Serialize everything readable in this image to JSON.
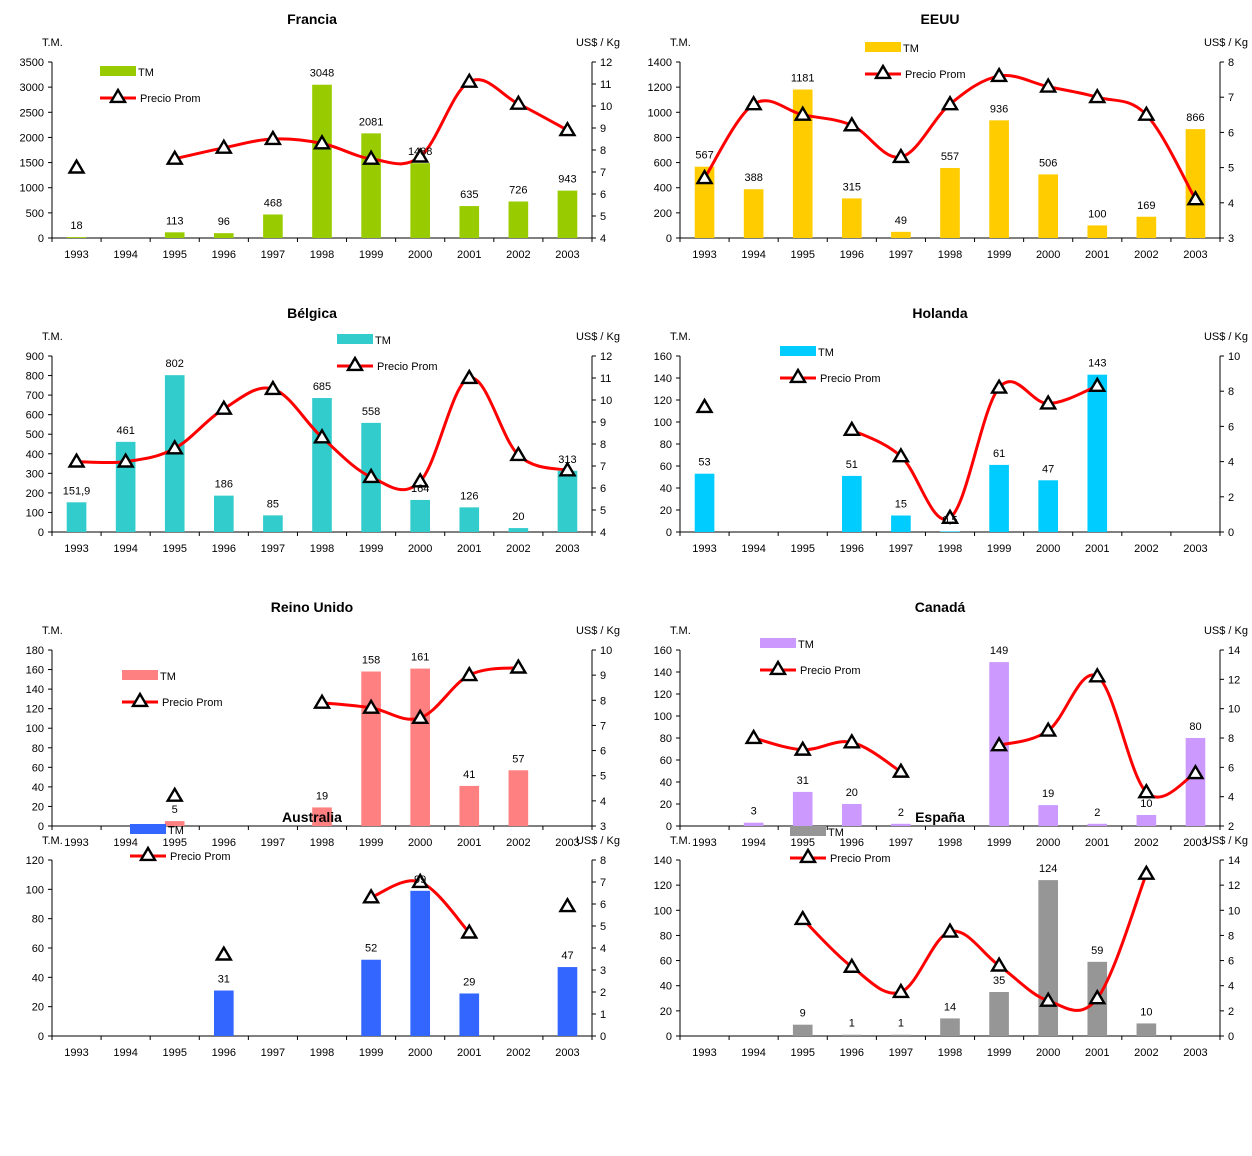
{
  "chart_data": [
    {
      "type": "bar",
      "title": "Francia",
      "ylabel_left": "T.M.",
      "ylabel_right": "US$ / Kg",
      "x": [
        "1993",
        "1994",
        "1995",
        "1996",
        "1997",
        "1998",
        "1999",
        "2000",
        "2001",
        "2002",
        "2003"
      ],
      "ylim": [
        0,
        3500
      ],
      "ylim_right": [
        4,
        12
      ],
      "yticks_left": [
        "0",
        "500",
        "1000",
        "1500",
        "2000",
        "2500",
        "3000",
        "3500"
      ],
      "yticks_right": [
        "4",
        "5",
        "6",
        "7",
        "8",
        "9",
        "10",
        "11",
        "12"
      ],
      "grid": false,
      "legend_position": "top-left",
      "bar_color": "#99cc00",
      "series": [
        {
          "name": "TM",
          "kind": "bar",
          "values": [
            18,
            null,
            113,
            96,
            468,
            3048,
            2081,
            1488,
            635,
            726,
            943
          ],
          "labels": [
            "18",
            "",
            "113",
            "96",
            "468",
            "3048",
            "2081",
            "1488",
            "635",
            "726",
            "943"
          ]
        },
        {
          "name": "Precio Prom",
          "kind": "line",
          "axis": "right",
          "values": [
            7.2,
            null,
            7.6,
            8.1,
            8.5,
            8.3,
            7.6,
            7.7,
            11.1,
            10.1,
            8.9
          ]
        }
      ]
    },
    {
      "type": "bar",
      "title": "EEUU",
      "ylabel_left": "T.M.",
      "ylabel_right": "US$ / Kg",
      "x": [
        "1993",
        "1994",
        "1995",
        "1996",
        "1997",
        "1998",
        "1999",
        "2000",
        "2001",
        "2002",
        "2003"
      ],
      "ylim": [
        0,
        1400
      ],
      "ylim_right": [
        3,
        8
      ],
      "yticks_left": [
        "0",
        "200",
        "400",
        "600",
        "800",
        "1000",
        "1200",
        "1400"
      ],
      "yticks_right": [
        "3",
        "4",
        "5",
        "6",
        "7",
        "8"
      ],
      "grid": false,
      "legend_position": "top-center",
      "bar_color": "#ffcc00",
      "series": [
        {
          "name": "TM",
          "kind": "bar",
          "values": [
            567,
            388,
            1181,
            315,
            49,
            557,
            936,
            506,
            100,
            169,
            866
          ],
          "labels": [
            "567",
            "388",
            "1181",
            "315",
            "49",
            "557",
            "936",
            "506",
            "100",
            "169",
            "866"
          ]
        },
        {
          "name": "Precio Prom",
          "kind": "line",
          "axis": "right",
          "values": [
            4.7,
            6.8,
            6.5,
            6.2,
            5.3,
            6.8,
            7.6,
            7.3,
            7.0,
            6.5,
            4.1
          ]
        }
      ]
    },
    {
      "type": "bar",
      "title": "Bélgica",
      "ylabel_left": "T.M.",
      "ylabel_right": "US$ / Kg",
      "x": [
        "1993",
        "1994",
        "1995",
        "1996",
        "1997",
        "1998",
        "1999",
        "2000",
        "2001",
        "2002",
        "2003"
      ],
      "ylim": [
        0,
        900
      ],
      "ylim_right": [
        4,
        12
      ],
      "yticks_left": [
        "0",
        "100",
        "200",
        "300",
        "400",
        "500",
        "600",
        "700",
        "800",
        "900"
      ],
      "yticks_right": [
        "4",
        "5",
        "6",
        "7",
        "8",
        "9",
        "10",
        "11",
        "12"
      ],
      "grid": false,
      "legend_position": "top-center",
      "bar_color": "#33cccc",
      "series": [
        {
          "name": "TM",
          "kind": "bar",
          "values": [
            151.9,
            461,
            802,
            186,
            85,
            685,
            558,
            164,
            126,
            20,
            313
          ],
          "labels": [
            "151,9",
            "461",
            "802",
            "186",
            "85",
            "685",
            "558",
            "164",
            "126",
            "20",
            "313"
          ]
        },
        {
          "name": "Precio Prom",
          "kind": "line",
          "axis": "right",
          "values": [
            7.2,
            7.2,
            7.8,
            9.6,
            10.5,
            8.3,
            6.5,
            6.3,
            11.0,
            7.5,
            6.8
          ]
        }
      ]
    },
    {
      "type": "bar",
      "title": "Holanda",
      "ylabel_left": "T.M.",
      "ylabel_right": "US$ / Kg",
      "x": [
        "1993",
        "1994",
        "1995",
        "1996",
        "1997",
        "1998",
        "1999",
        "2000",
        "2001",
        "2002",
        "2003"
      ],
      "ylim": [
        0,
        160
      ],
      "ylim_right": [
        0,
        10
      ],
      "yticks_left": [
        "0",
        "20",
        "40",
        "60",
        "80",
        "100",
        "120",
        "140",
        "160"
      ],
      "yticks_right": [
        "0",
        "2",
        "4",
        "6",
        "8",
        "10"
      ],
      "grid": false,
      "legend_position": "top-left",
      "bar_color": "#00ccff",
      "series": [
        {
          "name": "TM",
          "kind": "bar",
          "values": [
            53,
            null,
            null,
            51,
            15,
            0.5,
            61,
            47,
            143,
            null,
            null
          ],
          "labels": [
            "53",
            "",
            "",
            "51",
            "15",
            "0,5",
            "61",
            "47",
            "143",
            "",
            ""
          ]
        },
        {
          "name": "Precio Prom",
          "kind": "line",
          "axis": "right",
          "values": [
            7.1,
            null,
            null,
            5.8,
            4.3,
            0.8,
            8.2,
            7.3,
            8.3,
            null,
            null
          ]
        }
      ]
    },
    {
      "type": "bar",
      "title": "Reino Unido",
      "ylabel_left": "T.M.",
      "ylabel_right": "US$ / Kg",
      "x": [
        "1993",
        "1994",
        "1995",
        "1996",
        "1997",
        "1998",
        "1999",
        "2000",
        "2001",
        "2002",
        "2003"
      ],
      "ylim": [
        0,
        180
      ],
      "ylim_right": [
        3,
        10
      ],
      "yticks_left": [
        "0",
        "20",
        "40",
        "60",
        "80",
        "100",
        "120",
        "140",
        "160",
        "180"
      ],
      "yticks_right": [
        "3",
        "4",
        "5",
        "6",
        "7",
        "8",
        "9",
        "10"
      ],
      "grid": false,
      "legend_position": "top-left",
      "bar_color": "#ff8080",
      "series": [
        {
          "name": "TM",
          "kind": "bar",
          "values": [
            null,
            null,
            5,
            null,
            null,
            19,
            158,
            161,
            41,
            57,
            null
          ],
          "labels": [
            "",
            "",
            "5",
            "",
            "",
            "19",
            "158",
            "161",
            "41",
            "57",
            ""
          ]
        },
        {
          "name": "Precio Prom",
          "kind": "line",
          "axis": "right",
          "values": [
            null,
            null,
            4.2,
            null,
            null,
            7.9,
            7.7,
            7.3,
            9.0,
            9.3,
            null
          ]
        }
      ]
    },
    {
      "type": "bar",
      "title": "Canadá",
      "ylabel_left": "T.M.",
      "ylabel_right": "US$ / Kg",
      "x": [
        "1993",
        "1994",
        "1995",
        "1996",
        "1997",
        "1998",
        "1999",
        "2000",
        "2001",
        "2002",
        "2003"
      ],
      "ylim": [
        0,
        160
      ],
      "ylim_right": [
        2,
        14
      ],
      "yticks_left": [
        "0",
        "20",
        "40",
        "60",
        "80",
        "100",
        "120",
        "140",
        "160"
      ],
      "yticks_right": [
        "2",
        "4",
        "6",
        "8",
        "10",
        "12",
        "14"
      ],
      "grid": false,
      "legend_position": "top-left",
      "bar_color": "#cc99ff",
      "series": [
        {
          "name": "TM",
          "kind": "bar",
          "values": [
            null,
            3,
            31,
            20,
            2,
            null,
            149,
            19,
            2,
            10,
            80
          ],
          "labels": [
            "",
            "3",
            "31",
            "20",
            "2",
            "",
            "149",
            "19",
            "2",
            "10",
            "80"
          ]
        },
        {
          "name": "Precio Prom",
          "kind": "line",
          "axis": "right",
          "values": [
            null,
            8.0,
            7.2,
            7.7,
            5.7,
            null,
            7.5,
            8.5,
            12.2,
            4.3,
            5.6
          ]
        }
      ]
    },
    {
      "type": "bar",
      "title": "Australia",
      "ylabel_left": "T.M.",
      "ylabel_right": "US$ / Kg",
      "x": [
        "1993",
        "1994",
        "1995",
        "1996",
        "1997",
        "1998",
        "1999",
        "2000",
        "2001",
        "2002",
        "2003"
      ],
      "ylim": [
        0,
        120
      ],
      "ylim_right": [
        0,
        8
      ],
      "yticks_left": [
        "0",
        "20",
        "40",
        "60",
        "80",
        "100",
        "120"
      ],
      "yticks_right": [
        "0",
        "1",
        "2",
        "3",
        "4",
        "5",
        "6",
        "7",
        "8"
      ],
      "grid": false,
      "legend_position": "top-left",
      "bar_color": "#3366ff",
      "series": [
        {
          "name": "TM",
          "kind": "bar",
          "values": [
            null,
            null,
            null,
            31,
            null,
            null,
            52,
            99,
            29,
            null,
            47
          ],
          "labels": [
            "",
            "",
            "",
            "31",
            "",
            "",
            "52",
            "99",
            "29",
            "",
            "47"
          ]
        },
        {
          "name": "Precio Prom",
          "kind": "line",
          "axis": "right",
          "values": [
            null,
            null,
            null,
            3.7,
            null,
            null,
            6.3,
            7.0,
            4.7,
            null,
            5.9
          ]
        }
      ]
    },
    {
      "type": "bar",
      "title": "España",
      "ylabel_left": "T.M.",
      "ylabel_right": "US$ / Kg",
      "x": [
        "1993",
        "1994",
        "1995",
        "1996",
        "1997",
        "1998",
        "1999",
        "2000",
        "2001",
        "2002",
        "2003"
      ],
      "ylim": [
        0,
        140
      ],
      "ylim_right": [
        0,
        14
      ],
      "yticks_left": [
        "0",
        "20",
        "40",
        "60",
        "80",
        "100",
        "120",
        "140"
      ],
      "yticks_right": [
        "0",
        "2",
        "4",
        "6",
        "8",
        "10",
        "12",
        "14"
      ],
      "grid": false,
      "legend_position": "top-left",
      "bar_color": "#969696",
      "series": [
        {
          "name": "TM",
          "kind": "bar",
          "values": [
            null,
            null,
            9,
            1,
            1,
            14,
            35,
            124,
            59,
            10,
            null
          ],
          "labels": [
            "",
            "",
            "9",
            "1",
            "1",
            "14",
            "35",
            "124",
            "59",
            "10",
            ""
          ]
        },
        {
          "name": "Precio Prom",
          "kind": "line",
          "axis": "right",
          "values": [
            null,
            null,
            9.3,
            5.5,
            3.5,
            8.3,
            5.6,
            2.8,
            3.0,
            12.9,
            null
          ]
        }
      ]
    }
  ]
}
